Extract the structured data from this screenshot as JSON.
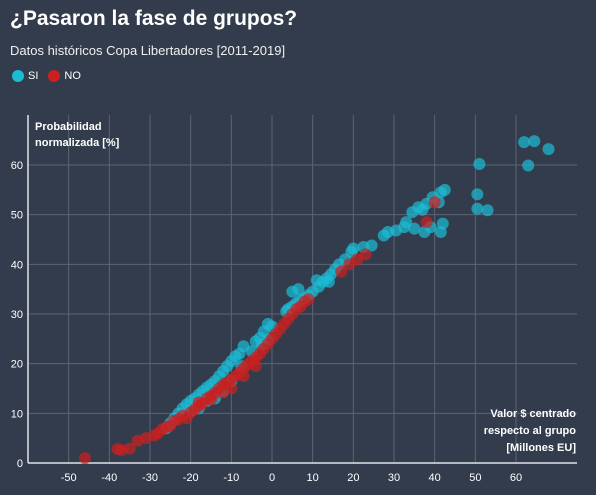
{
  "title": "¿Pasaron la fase de grupos?",
  "subtitle": "Datos históricos Copa Libertadores [2011-2019]",
  "legend": [
    {
      "label": "SI",
      "color": "#1bbcd6"
    },
    {
      "label": "NO",
      "color": "#cc2020"
    }
  ],
  "chart_data": {
    "type": "scatter",
    "ylabel": [
      "Probabilidad",
      "normalizada [%]"
    ],
    "xlabel": [
      "Valor $ centrado",
      "respecto al grupo",
      "[Millones EU]"
    ],
    "xlim": [
      -60,
      75
    ],
    "ylim": [
      0,
      65
    ],
    "xticks": [
      -50,
      -40,
      -30,
      -20,
      -10,
      0,
      10,
      20,
      30,
      40,
      50,
      60
    ],
    "yticks": [
      0,
      10,
      20,
      30,
      40,
      50,
      60
    ],
    "grid": true,
    "series": [
      {
        "name": "SI",
        "color": "#1bbcd6",
        "points": [
          [
            62,
            64.6
          ],
          [
            64.5,
            64.8
          ],
          [
            68,
            63.2
          ],
          [
            51,
            60.2
          ],
          [
            63,
            59.9
          ],
          [
            50.5,
            54.1
          ],
          [
            50.5,
            51.2
          ],
          [
            53,
            50.9
          ],
          [
            42.5,
            55.0
          ],
          [
            41.5,
            54.5
          ],
          [
            39.5,
            53.5
          ],
          [
            38,
            52.2
          ],
          [
            36,
            51.5
          ],
          [
            34.5,
            50.5
          ],
          [
            37,
            51.0
          ],
          [
            41,
            52.5
          ],
          [
            42,
            48.2
          ],
          [
            41.5,
            46.5
          ],
          [
            37.5,
            46.5
          ],
          [
            39,
            47.5
          ],
          [
            35,
            47.2
          ],
          [
            32.5,
            47.5
          ],
          [
            30.5,
            46.8
          ],
          [
            28.5,
            46.5
          ],
          [
            27.5,
            45.8
          ],
          [
            33,
            48.5
          ],
          [
            24.5,
            43.8
          ],
          [
            22.5,
            43.5
          ],
          [
            20,
            43.2
          ],
          [
            19.5,
            42.5
          ],
          [
            18,
            41.0
          ],
          [
            16.5,
            40.0
          ],
          [
            15.5,
            39.0
          ],
          [
            14.5,
            38.0
          ],
          [
            13.5,
            37.2
          ],
          [
            12.5,
            36.5
          ],
          [
            11.5,
            35.5
          ],
          [
            10,
            34.5
          ],
          [
            9,
            33.8
          ],
          [
            8,
            33.2
          ],
          [
            11,
            36.8
          ],
          [
            14,
            36.5
          ],
          [
            7,
            32.8
          ],
          [
            6,
            32.2
          ],
          [
            5,
            31.5
          ],
          [
            4,
            31.0
          ],
          [
            6.5,
            35.0
          ],
          [
            5,
            34.5
          ],
          [
            3.5,
            30.5
          ],
          [
            -1,
            28.0
          ],
          [
            0,
            27.5
          ],
          [
            -2,
            26.5
          ],
          [
            -3,
            25.2
          ],
          [
            -4,
            24.5
          ],
          [
            -1,
            24.8
          ],
          [
            -2.5,
            23.8
          ],
          [
            -7,
            23.5
          ],
          [
            -5,
            22.5
          ],
          [
            -8,
            22.0
          ],
          [
            -9,
            21.5
          ],
          [
            -10,
            20.5
          ],
          [
            -11,
            19.5
          ],
          [
            -7.5,
            19.5
          ],
          [
            -12,
            18.5
          ],
          [
            -13,
            17.5
          ],
          [
            -14,
            16.5
          ],
          [
            -15,
            15.8
          ],
          [
            -16,
            15.2
          ],
          [
            -17,
            14.5
          ],
          [
            -18,
            13.8
          ],
          [
            -19,
            13.0
          ],
          [
            -20,
            12.5
          ],
          [
            -21,
            11.8
          ],
          [
            -22,
            11.0
          ],
          [
            -23,
            10.0
          ],
          [
            -24,
            9.0
          ],
          [
            -25,
            8.0
          ],
          [
            -26,
            7.0
          ],
          [
            -20,
            10.5
          ],
          [
            -16,
            12.5
          ],
          [
            -12,
            14.5
          ],
          [
            -10,
            16.5
          ],
          [
            -14,
            13.0
          ],
          [
            -18,
            11.0
          ]
        ]
      },
      {
        "name": "NO",
        "color": "#cc2020",
        "points": [
          [
            -46,
            1.0
          ],
          [
            -38,
            2.8
          ],
          [
            -37,
            2.6
          ],
          [
            -35,
            2.9
          ],
          [
            -33,
            4.5
          ],
          [
            -31,
            5.0
          ],
          [
            -29,
            5.5
          ],
          [
            -28,
            6.0
          ],
          [
            -27,
            6.8
          ],
          [
            -25,
            7.5
          ],
          [
            -24,
            8.5
          ],
          [
            -22,
            9.5
          ],
          [
            -20,
            10.2
          ],
          [
            -19,
            10.8
          ],
          [
            -18,
            11.5
          ],
          [
            -17,
            12.0
          ],
          [
            -16,
            13.0
          ],
          [
            -15,
            13.5
          ],
          [
            -14,
            14.2
          ],
          [
            -13,
            15.0
          ],
          [
            -12,
            15.8
          ],
          [
            -11,
            16.2
          ],
          [
            -10,
            16.8
          ],
          [
            -9,
            17.5
          ],
          [
            -8,
            18.2
          ],
          [
            -7,
            19.0
          ],
          [
            -6,
            19.8
          ],
          [
            -5,
            20.5
          ],
          [
            -4,
            21.2
          ],
          [
            -3,
            22.0
          ],
          [
            -2,
            23.0
          ],
          [
            -1,
            24.0
          ],
          [
            0,
            25.0
          ],
          [
            1,
            26.0
          ],
          [
            2,
            27.0
          ],
          [
            3,
            28.0
          ],
          [
            4,
            29.0
          ],
          [
            5,
            30.0
          ],
          [
            6,
            31.0
          ],
          [
            7,
            31.5
          ],
          [
            8,
            32.5
          ],
          [
            9,
            33.0
          ],
          [
            17,
            38.5
          ],
          [
            19,
            40.0
          ],
          [
            21,
            41.0
          ],
          [
            23,
            42.0
          ],
          [
            38,
            48.5
          ],
          [
            40,
            52.5
          ],
          [
            -21,
            9.0
          ],
          [
            -23,
            8.8
          ],
          [
            -26,
            7.2
          ],
          [
            -18,
            12.2
          ],
          [
            -15,
            12.8
          ],
          [
            -12,
            14.2
          ],
          [
            -10,
            15.0
          ],
          [
            -7,
            17.5
          ],
          [
            -4,
            19.5
          ]
        ]
      }
    ]
  }
}
